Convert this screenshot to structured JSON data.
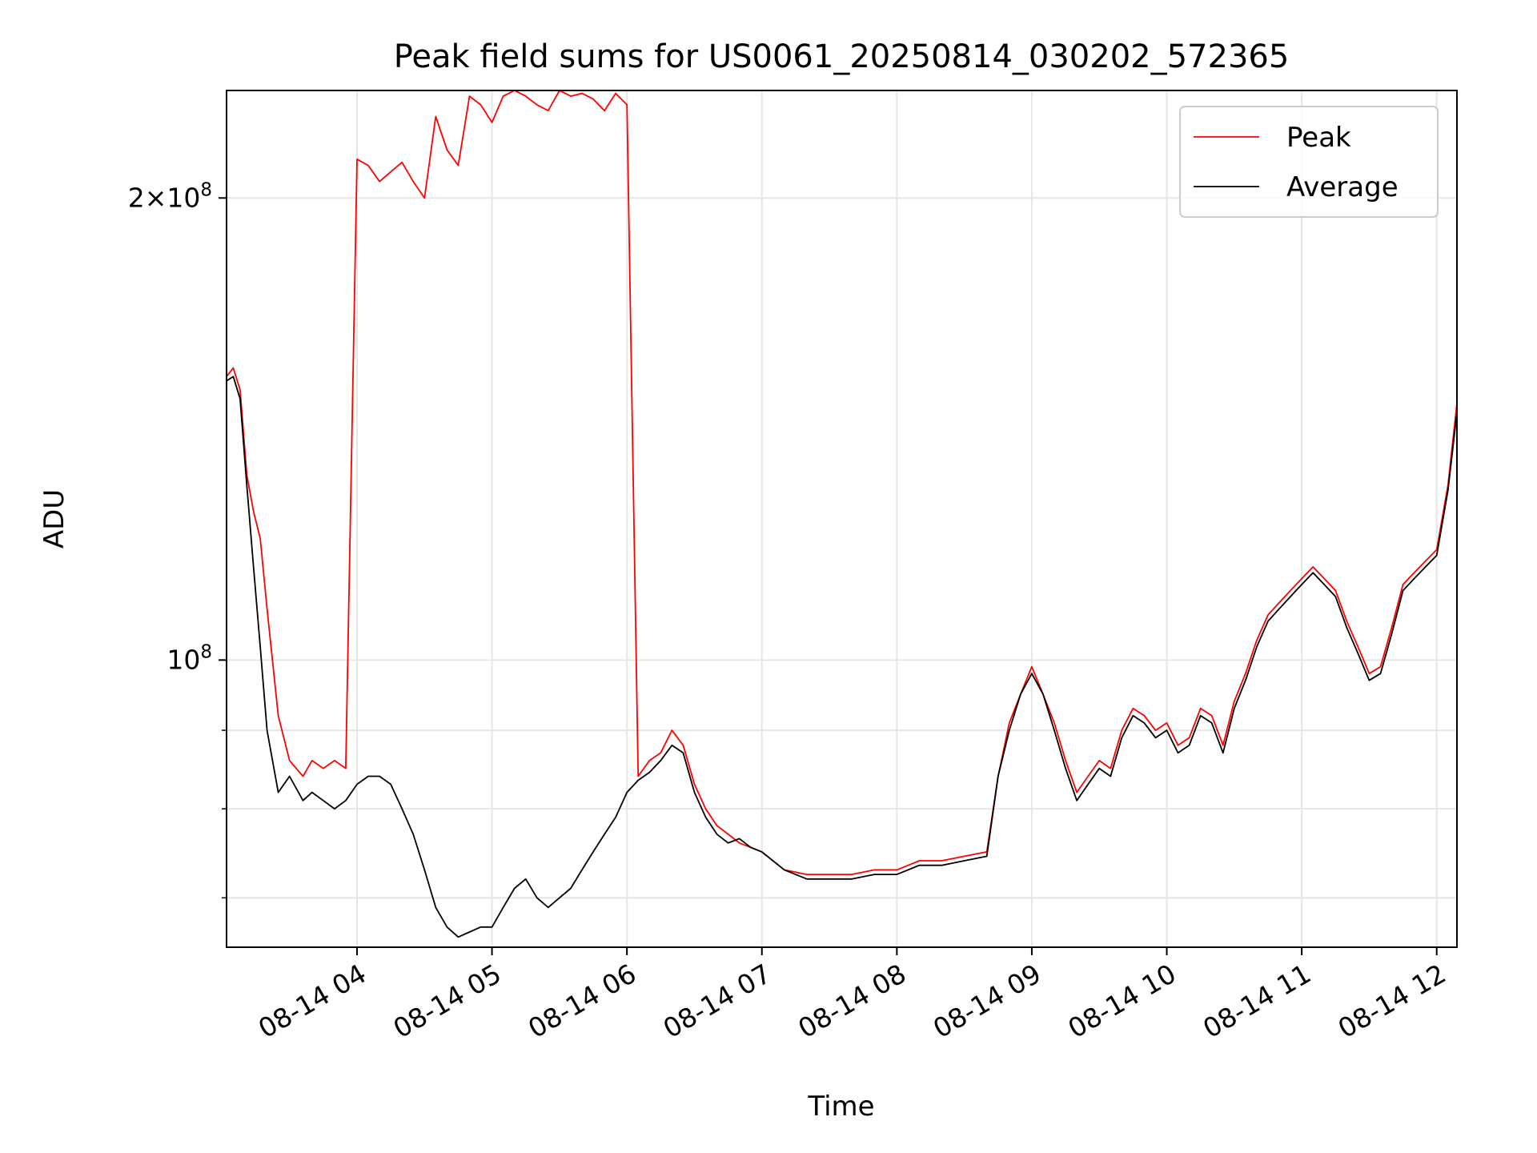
{
  "chart_data": {
    "type": "line",
    "title": "Peak field sums for US0061_20250814_030202_572365",
    "xlabel": "Time",
    "ylabel": "ADU",
    "yscale": "log",
    "xlim": [
      "2025-08-14 03:02",
      "2025-08-14 12:09"
    ],
    "ylim": [
      65000000,
      235000000
    ],
    "grid": true,
    "legend_position": "top-right",
    "x_ticks": [
      {
        "t": "2025-08-14 04:00",
        "label": "08-14 04"
      },
      {
        "t": "2025-08-14 05:00",
        "label": "08-14 05"
      },
      {
        "t": "2025-08-14 06:00",
        "label": "08-14 06"
      },
      {
        "t": "2025-08-14 07:00",
        "label": "08-14 07"
      },
      {
        "t": "2025-08-14 08:00",
        "label": "08-14 08"
      },
      {
        "t": "2025-08-14 09:00",
        "label": "08-14 09"
      },
      {
        "t": "2025-08-14 10:00",
        "label": "08-14 10"
      },
      {
        "t": "2025-08-14 11:00",
        "label": "08-14 11"
      },
      {
        "t": "2025-08-14 12:00",
        "label": "08-14 12"
      }
    ],
    "y_major_ticks": [
      {
        "value": 100000000,
        "base": "10",
        "exp": "8",
        "coef": ""
      },
      {
        "value": 200000000,
        "base": "10",
        "exp": "8",
        "coef": "2"
      }
    ],
    "y_minor_ticks": [
      70000000,
      80000000,
      90000000
    ],
    "series": [
      {
        "name": "Peak",
        "color": "#ff0000",
        "x": [
          "2025-08-14 03:02",
          "2025-08-14 03:05",
          "2025-08-14 03:08",
          "2025-08-14 03:11",
          "2025-08-14 03:14",
          "2025-08-14 03:17",
          "2025-08-14 03:20",
          "2025-08-14 03:25",
          "2025-08-14 03:30",
          "2025-08-14 03:36",
          "2025-08-14 03:40",
          "2025-08-14 03:45",
          "2025-08-14 03:50",
          "2025-08-14 03:55",
          "2025-08-14 04:00",
          "2025-08-14 04:05",
          "2025-08-14 04:10",
          "2025-08-14 04:15",
          "2025-08-14 04:20",
          "2025-08-14 04:25",
          "2025-08-14 04:30",
          "2025-08-14 04:35",
          "2025-08-14 04:40",
          "2025-08-14 04:45",
          "2025-08-14 04:50",
          "2025-08-14 04:55",
          "2025-08-14 05:00",
          "2025-08-14 05:05",
          "2025-08-14 05:10",
          "2025-08-14 05:15",
          "2025-08-14 05:20",
          "2025-08-14 05:25",
          "2025-08-14 05:30",
          "2025-08-14 05:35",
          "2025-08-14 05:40",
          "2025-08-14 05:45",
          "2025-08-14 05:50",
          "2025-08-14 05:55",
          "2025-08-14 06:00",
          "2025-08-14 06:05",
          "2025-08-14 06:10",
          "2025-08-14 06:15",
          "2025-08-14 06:20",
          "2025-08-14 06:25",
          "2025-08-14 06:30",
          "2025-08-14 06:35",
          "2025-08-14 06:40",
          "2025-08-14 06:45",
          "2025-08-14 06:50",
          "2025-08-14 06:55",
          "2025-08-14 07:00",
          "2025-08-14 07:10",
          "2025-08-14 07:20",
          "2025-08-14 07:30",
          "2025-08-14 07:40",
          "2025-08-14 07:50",
          "2025-08-14 08:00",
          "2025-08-14 08:10",
          "2025-08-14 08:20",
          "2025-08-14 08:30",
          "2025-08-14 08:40",
          "2025-08-14 08:45",
          "2025-08-14 08:50",
          "2025-08-14 08:55",
          "2025-08-14 09:00",
          "2025-08-14 09:05",
          "2025-08-14 09:10",
          "2025-08-14 09:15",
          "2025-08-14 09:20",
          "2025-08-14 09:25",
          "2025-08-14 09:30",
          "2025-08-14 09:35",
          "2025-08-14 09:40",
          "2025-08-14 09:45",
          "2025-08-14 09:50",
          "2025-08-14 09:55",
          "2025-08-14 10:00",
          "2025-08-14 10:05",
          "2025-08-14 10:10",
          "2025-08-14 10:15",
          "2025-08-14 10:20",
          "2025-08-14 10:25",
          "2025-08-14 10:30",
          "2025-08-14 10:35",
          "2025-08-14 10:40",
          "2025-08-14 10:45",
          "2025-08-14 10:50",
          "2025-08-14 10:55",
          "2025-08-14 11:00",
          "2025-08-14 11:05",
          "2025-08-14 11:10",
          "2025-08-14 11:15",
          "2025-08-14 11:20",
          "2025-08-14 11:25",
          "2025-08-14 11:30",
          "2025-08-14 11:35",
          "2025-08-14 11:40",
          "2025-08-14 11:45",
          "2025-08-14 11:50",
          "2025-08-14 11:55",
          "2025-08-14 12:00",
          "2025-08-14 12:05",
          "2025-08-14 12:09"
        ],
        "y": [
          153000000,
          155000000,
          150000000,
          132000000,
          125000000,
          120000000,
          108000000,
          92000000,
          86000000,
          84000000,
          86000000,
          85000000,
          86000000,
          85000000,
          212000000,
          210000000,
          205000000,
          208000000,
          211000000,
          205000000,
          200000000,
          226000000,
          215000000,
          210000000,
          233000000,
          230000000,
          224000000,
          233000000,
          235000000,
          233000000,
          230000000,
          228000000,
          235000000,
          233000000,
          234000000,
          232000000,
          228000000,
          234000000,
          230000000,
          84000000,
          86000000,
          87000000,
          90000000,
          88000000,
          83000000,
          80000000,
          78000000,
          77000000,
          76000000,
          75500000,
          75000000,
          73000000,
          72500000,
          72500000,
          72500000,
          73000000,
          73000000,
          74000000,
          74000000,
          74500000,
          75000000,
          84000000,
          91000000,
          95000000,
          99000000,
          95000000,
          91000000,
          86000000,
          82000000,
          84000000,
          86000000,
          85000000,
          90000000,
          93000000,
          92000000,
          90000000,
          91000000,
          88000000,
          89000000,
          93000000,
          92000000,
          88000000,
          94000000,
          98000000,
          103000000,
          107000000,
          109000000,
          111000000,
          113000000,
          115000000,
          113000000,
          111000000,
          106000000,
          102000000,
          98000000,
          99000000,
          105000000,
          112000000,
          114000000,
          116000000,
          118000000,
          130000000,
          147000000
        ]
      },
      {
        "name": "Average",
        "color": "#000000",
        "x": [
          "2025-08-14 03:02",
          "2025-08-14 03:05",
          "2025-08-14 03:08",
          "2025-08-14 03:11",
          "2025-08-14 03:14",
          "2025-08-14 03:17",
          "2025-08-14 03:20",
          "2025-08-14 03:25",
          "2025-08-14 03:30",
          "2025-08-14 03:36",
          "2025-08-14 03:40",
          "2025-08-14 03:45",
          "2025-08-14 03:50",
          "2025-08-14 03:55",
          "2025-08-14 04:00",
          "2025-08-14 04:05",
          "2025-08-14 04:10",
          "2025-08-14 04:15",
          "2025-08-14 04:20",
          "2025-08-14 04:25",
          "2025-08-14 04:30",
          "2025-08-14 04:35",
          "2025-08-14 04:40",
          "2025-08-14 04:45",
          "2025-08-14 04:50",
          "2025-08-14 04:55",
          "2025-08-14 05:00",
          "2025-08-14 05:05",
          "2025-08-14 05:10",
          "2025-08-14 05:15",
          "2025-08-14 05:20",
          "2025-08-14 05:25",
          "2025-08-14 05:30",
          "2025-08-14 05:35",
          "2025-08-14 05:40",
          "2025-08-14 05:45",
          "2025-08-14 05:50",
          "2025-08-14 05:55",
          "2025-08-14 06:00",
          "2025-08-14 06:05",
          "2025-08-14 06:10",
          "2025-08-14 06:15",
          "2025-08-14 06:20",
          "2025-08-14 06:25",
          "2025-08-14 06:30",
          "2025-08-14 06:35",
          "2025-08-14 06:40",
          "2025-08-14 06:45",
          "2025-08-14 06:50",
          "2025-08-14 06:55",
          "2025-08-14 07:00",
          "2025-08-14 07:10",
          "2025-08-14 07:20",
          "2025-08-14 07:30",
          "2025-08-14 07:40",
          "2025-08-14 07:50",
          "2025-08-14 08:00",
          "2025-08-14 08:10",
          "2025-08-14 08:20",
          "2025-08-14 08:30",
          "2025-08-14 08:40",
          "2025-08-14 08:45",
          "2025-08-14 08:50",
          "2025-08-14 08:55",
          "2025-08-14 09:00",
          "2025-08-14 09:05",
          "2025-08-14 09:10",
          "2025-08-14 09:15",
          "2025-08-14 09:20",
          "2025-08-14 09:25",
          "2025-08-14 09:30",
          "2025-08-14 09:35",
          "2025-08-14 09:40",
          "2025-08-14 09:45",
          "2025-08-14 09:50",
          "2025-08-14 09:55",
          "2025-08-14 10:00",
          "2025-08-14 10:05",
          "2025-08-14 10:10",
          "2025-08-14 10:15",
          "2025-08-14 10:20",
          "2025-08-14 10:25",
          "2025-08-14 10:30",
          "2025-08-14 10:35",
          "2025-08-14 10:40",
          "2025-08-14 10:45",
          "2025-08-14 10:50",
          "2025-08-14 10:55",
          "2025-08-14 11:00",
          "2025-08-14 11:05",
          "2025-08-14 11:10",
          "2025-08-14 11:15",
          "2025-08-14 11:20",
          "2025-08-14 11:25",
          "2025-08-14 11:30",
          "2025-08-14 11:35",
          "2025-08-14 11:40",
          "2025-08-14 11:45",
          "2025-08-14 11:50",
          "2025-08-14 11:55",
          "2025-08-14 12:00",
          "2025-08-14 12:05",
          "2025-08-14 12:09"
        ],
        "y": [
          152000000,
          153000000,
          148000000,
          130000000,
          115000000,
          102000000,
          90000000,
          82000000,
          84000000,
          81000000,
          82000000,
          81000000,
          80000000,
          81000000,
          83000000,
          84000000,
          84000000,
          83000000,
          80000000,
          77000000,
          73000000,
          69000000,
          67000000,
          66000000,
          66500000,
          67000000,
          67000000,
          69000000,
          71000000,
          72000000,
          70000000,
          69000000,
          70000000,
          71000000,
          73000000,
          75000000,
          77000000,
          79000000,
          82000000,
          83500000,
          84500000,
          86000000,
          88000000,
          87000000,
          82000000,
          79000000,
          77000000,
          76000000,
          76500000,
          75500000,
          75000000,
          73000000,
          72000000,
          72000000,
          72000000,
          72500000,
          72500000,
          73500000,
          73500000,
          74000000,
          74500000,
          84000000,
          90000000,
          95000000,
          98000000,
          95000000,
          90000000,
          85000000,
          81000000,
          83000000,
          85000000,
          84000000,
          89000000,
          92000000,
          91000000,
          89000000,
          90000000,
          87000000,
          88000000,
          92000000,
          91000000,
          87000000,
          93000000,
          97000000,
          102000000,
          106000000,
          108000000,
          110000000,
          112000000,
          114000000,
          112000000,
          110000000,
          105000000,
          101000000,
          97000000,
          98000000,
          104000000,
          111000000,
          113000000,
          115000000,
          117000000,
          129000000,
          145000000
        ]
      }
    ]
  }
}
